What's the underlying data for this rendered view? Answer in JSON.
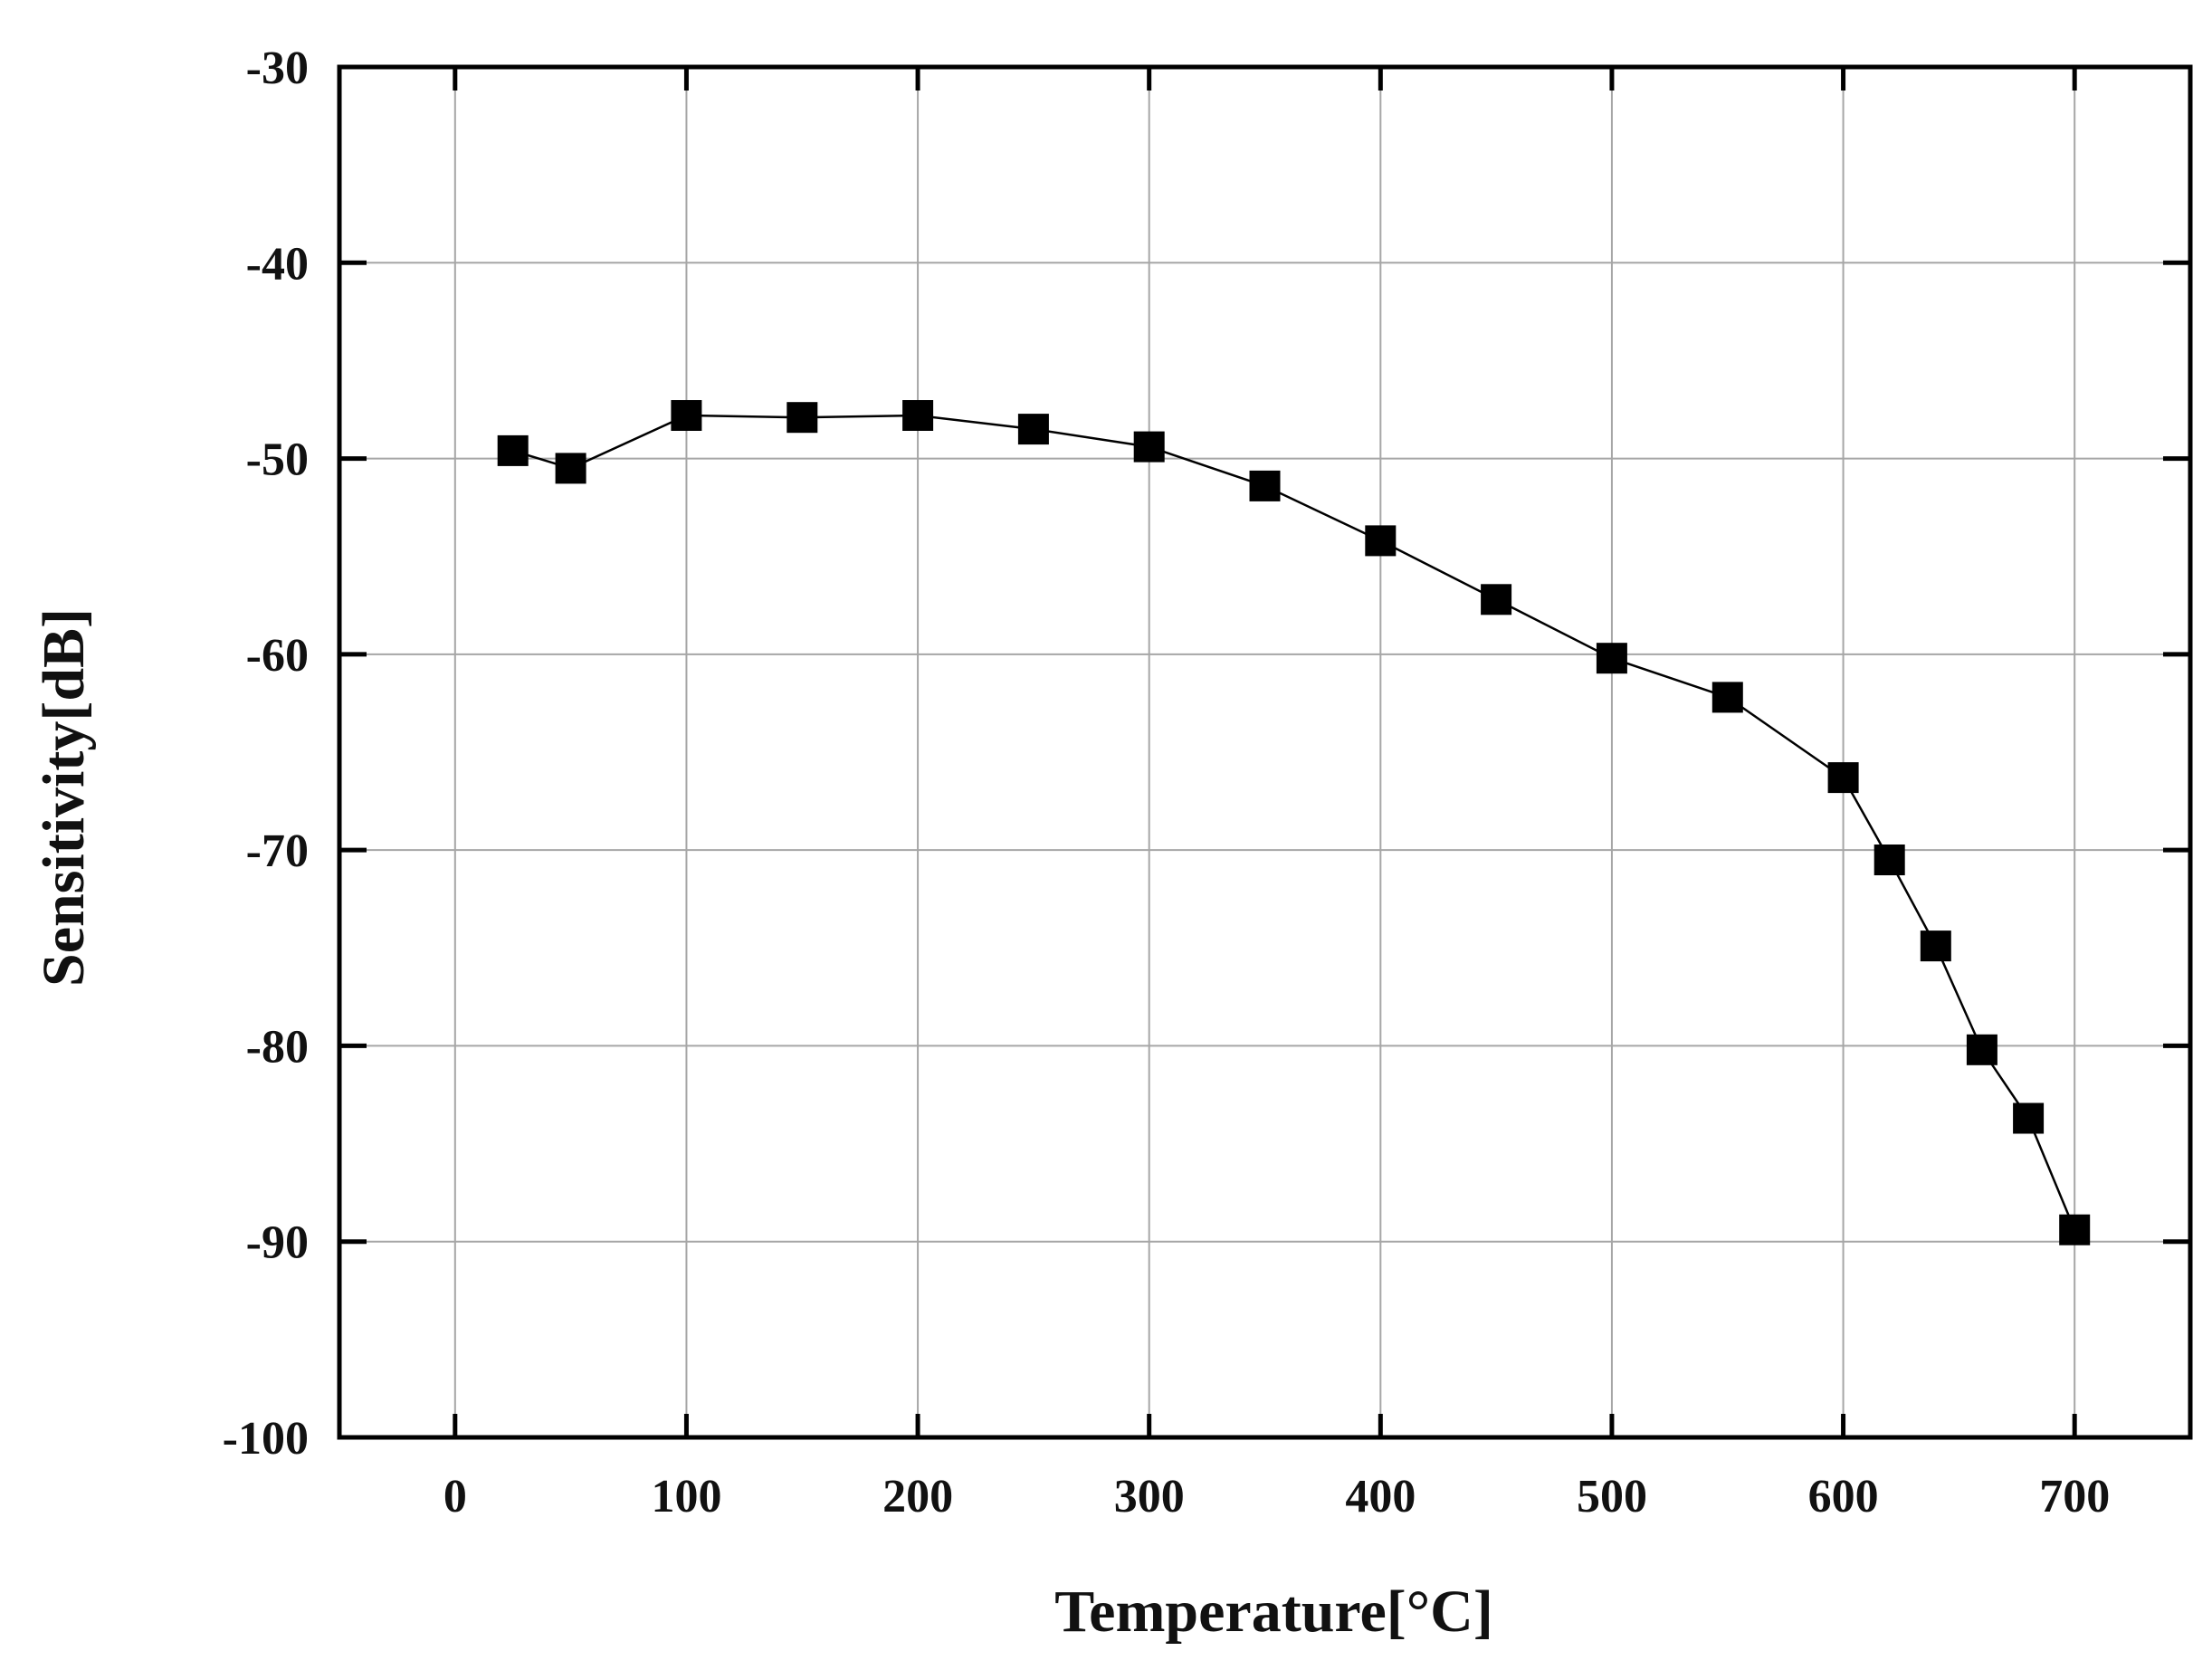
{
  "chart_data": {
    "type": "line",
    "title": "",
    "xlabel": "Temperature[°C]",
    "ylabel": "Sensitivity[dB]",
    "xlim": [
      -50,
      750
    ],
    "ylim": [
      -100,
      -30
    ],
    "xticks": [
      "0",
      "100",
      "200",
      "300",
      "400",
      "500",
      "600",
      "700"
    ],
    "yticks": [
      "-30",
      "-40",
      "-50",
      "-60",
      "-70",
      "-80",
      "-90",
      "-100"
    ],
    "grid": true,
    "marker": "square",
    "series": [
      {
        "x": [
          25,
          50,
          100,
          150,
          200,
          250,
          300,
          350,
          400,
          450,
          500,
          550,
          600,
          620,
          640,
          660,
          680,
          700
        ],
        "y": [
          -49.6,
          -50.5,
          -47.8,
          -47.9,
          -47.8,
          -48.5,
          -49.4,
          -51.4,
          -54.2,
          -57.2,
          -60.2,
          -62.2,
          -66.3,
          -70.5,
          -74.9,
          -80.2,
          -83.7,
          -89.4
        ]
      }
    ],
    "colors": {
      "marker": "#000000",
      "line": "#000000",
      "grid": "#a6a6a6",
      "frame": "#000000"
    }
  }
}
